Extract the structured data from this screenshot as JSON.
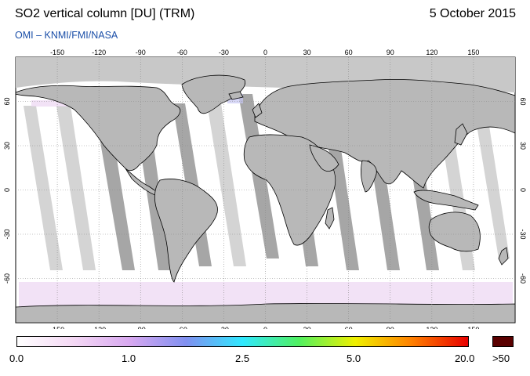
{
  "header": {
    "title": "SO2 vertical column [DU] (TRM)",
    "date": "5 October 2015",
    "credit": "OMI  –  KNMI/FMI/NASA"
  },
  "map": {
    "lon_ticks": [
      "-150",
      "-120",
      "-90",
      "-60",
      "-30",
      "0",
      "30",
      "60",
      "90",
      "120",
      "150"
    ],
    "lat_ticks_left": [
      "60",
      "30",
      "0",
      "-30",
      "-60"
    ],
    "lat_ticks_right": [
      "60",
      "30",
      "0",
      "-30",
      "-60"
    ],
    "colors": {
      "polar_night": "#c8c8c8",
      "data_gap_dark": "#a6a6a6",
      "data_gap_light": "#d4d4d4",
      "coastline": "#000000",
      "graticule": "#8a8a8a"
    }
  },
  "colorbar": {
    "labels": [
      "0.0",
      "1.0",
      "2.5",
      "5.0",
      "20.0",
      ">50"
    ],
    "gradient_colors": [
      "#ffffff",
      "#f4d8f4",
      "#d8a8f0",
      "#8090f0",
      "#30e8ff",
      "#50f060",
      "#f0f000",
      "#ff8000",
      "#e80000"
    ],
    "overflow_color": "#5a0000"
  }
}
